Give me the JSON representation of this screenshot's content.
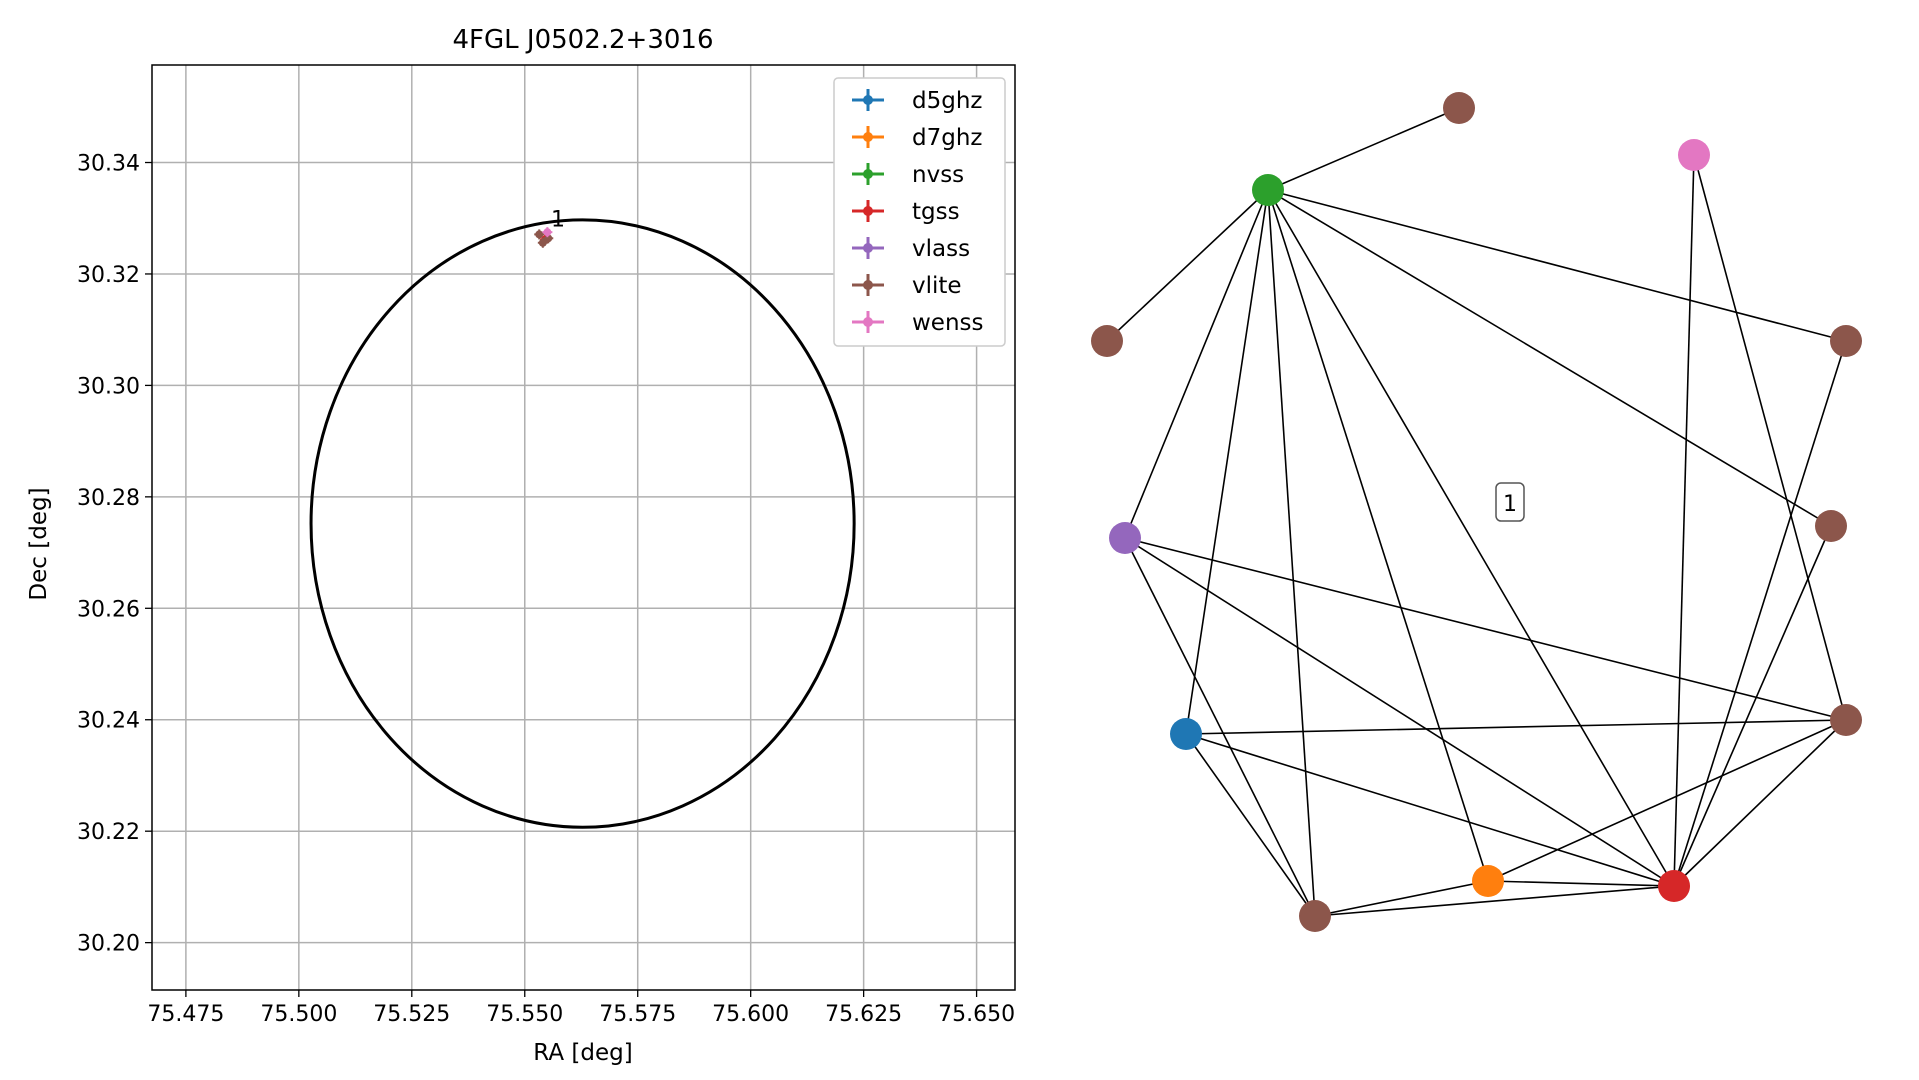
{
  "chart_data": [
    {
      "type": "scatter",
      "title": "4FGL J0502.2+3016",
      "xlabel": "RA [deg]",
      "ylabel": "Dec [deg]",
      "xlim": [
        75.4675,
        75.6585
      ],
      "ylim": [
        30.1915,
        30.3575
      ],
      "grid": true,
      "x_ticks": [
        "75.475",
        "75.500",
        "75.525",
        "75.550",
        "75.575",
        "75.600",
        "75.625",
        "75.650"
      ],
      "y_ticks": [
        "30.20",
        "30.22",
        "30.24",
        "30.26",
        "30.28",
        "30.30",
        "30.32",
        "30.34"
      ],
      "legend_position": "top-right",
      "series": [
        {
          "name": "d5ghz",
          "color": "#1f77b4",
          "points": []
        },
        {
          "name": "d7ghz",
          "color": "#ff7f0e",
          "points": []
        },
        {
          "name": "nvss",
          "color": "#2ca02c",
          "points": []
        },
        {
          "name": "tgss",
          "color": "#d62728",
          "points": [
            [
              75.5545,
              30.3262
            ]
          ]
        },
        {
          "name": "vlass",
          "color": "#9467bd",
          "points": []
        },
        {
          "name": "vlite",
          "color": "#8c564b",
          "points": [
            [
              75.5532,
              30.3271
            ],
            [
              75.554,
              30.3256
            ],
            [
              75.5552,
              30.3264
            ]
          ]
        },
        {
          "name": "wenss",
          "color": "#e377c2",
          "points": [
            [
              75.555,
              30.3275
            ]
          ]
        }
      ],
      "ellipse": {
        "center": [
          75.5628,
          30.2752
        ],
        "semi_axis_ra": 0.0601,
        "semi_axis_dec": 0.0545,
        "color": "#000000"
      },
      "annotation": {
        "text": "1",
        "x": 75.5558,
        "y": 30.3285
      }
    },
    {
      "type": "network",
      "cluster_label": "1",
      "nodes": [
        {
          "id": "n_top",
          "color": "#8c564b"
        },
        {
          "id": "pink",
          "color": "#e377c2"
        },
        {
          "id": "green",
          "color": "#2ca02c"
        },
        {
          "id": "brown_left",
          "color": "#8c564b"
        },
        {
          "id": "brown_right_top",
          "color": "#8c564b"
        },
        {
          "id": "brown_right_mid",
          "color": "#8c564b"
        },
        {
          "id": "purple",
          "color": "#9467bd"
        },
        {
          "id": "blue",
          "color": "#1f77b4"
        },
        {
          "id": "brown_right_low",
          "color": "#8c564b"
        },
        {
          "id": "orange",
          "color": "#ff7f0e"
        },
        {
          "id": "red",
          "color": "#d62728"
        },
        {
          "id": "brown_bottom",
          "color": "#8c564b"
        }
      ],
      "edges": [
        [
          "green",
          "n_top"
        ],
        [
          "green",
          "brown_left"
        ],
        [
          "green",
          "brown_right_top"
        ],
        [
          "green",
          "brown_right_mid"
        ],
        [
          "green",
          "purple"
        ],
        [
          "green",
          "blue"
        ],
        [
          "green",
          "brown_bottom"
        ],
        [
          "green",
          "orange"
        ],
        [
          "green",
          "red"
        ],
        [
          "pink",
          "red"
        ],
        [
          "pink",
          "brown_right_low"
        ],
        [
          "brown_right_top",
          "red"
        ],
        [
          "brown_right_mid",
          "red"
        ],
        [
          "purple",
          "brown_right_low"
        ],
        [
          "purple",
          "red"
        ],
        [
          "purple",
          "brown_bottom"
        ],
        [
          "blue",
          "brown_right_low"
        ],
        [
          "blue",
          "red"
        ],
        [
          "blue",
          "brown_bottom"
        ],
        [
          "brown_right_low",
          "orange"
        ],
        [
          "brown_right_low",
          "red"
        ],
        [
          "orange",
          "red"
        ],
        [
          "orange",
          "brown_bottom"
        ],
        [
          "brown_bottom",
          "red"
        ]
      ]
    }
  ]
}
